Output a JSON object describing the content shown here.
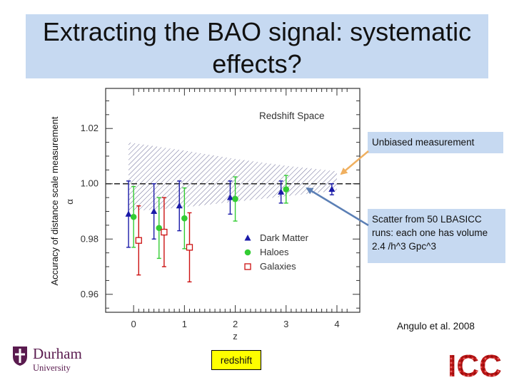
{
  "slide": {
    "title": "Extracting the BAO signal: systematic effects?",
    "side_label": "Accuracy of distance scale measurement",
    "callout_unbiased": "Unbiased measurement",
    "callout_scatter": "Scatter from 50 LBASICC runs: each one has volume 2.4 /h^3 Gpc^3",
    "citation": "Angulo et al. 2008",
    "redshift_box": "redshift",
    "logo_left": {
      "name": "Durham",
      "sub": "University"
    },
    "logo_right": "ICC"
  },
  "chart_data": {
    "type": "scatter",
    "title": "Redshift Space",
    "xlabel": "z",
    "ylabel": "α",
    "xlim": [
      -0.55,
      4.45
    ],
    "ylim": [
      0.9535,
      1.0345
    ],
    "x_ticks": [
      0,
      1,
      2,
      3,
      4
    ],
    "y_ticks": [
      0.96,
      0.98,
      1.0,
      1.02
    ],
    "y_tick_labels": [
      "0.96",
      "0.98",
      "1.00",
      "1.02"
    ],
    "reference_line": 1.0,
    "legend_position": "bottom-right",
    "band": {
      "label": "hatched uncertainty region",
      "x": [
        -0.1,
        1.0,
        2.0,
        3.0,
        4.0
      ],
      "upper": [
        1.015,
        1.012,
        1.009,
        1.0065,
        1.0045
      ],
      "lower": [
        0.99,
        0.9915,
        0.9935,
        0.9955,
        0.9975
      ]
    },
    "series": [
      {
        "name": "Dark Matter",
        "marker": "triangle",
        "color": "#1a1aa8",
        "x": [
          -0.1,
          0.4,
          0.9,
          1.9,
          2.9,
          3.9
        ],
        "y": [
          0.989,
          0.99,
          0.992,
          0.995,
          0.997,
          0.998
        ],
        "err": [
          0.012,
          0.01,
          0.009,
          0.006,
          0.004,
          0.002
        ]
      },
      {
        "name": "Haloes",
        "marker": "circle",
        "color": "#33cc33",
        "x": [
          0.0,
          0.5,
          1.0,
          2.0,
          3.0
        ],
        "y": [
          0.988,
          0.984,
          0.9875,
          0.9945,
          0.998
        ],
        "err": [
          0.011,
          0.011,
          0.011,
          0.008,
          0.005
        ]
      },
      {
        "name": "Galaxies",
        "marker": "open-square",
        "color": "#cc1111",
        "x": [
          0.1,
          0.6,
          1.1
        ],
        "y": [
          0.9795,
          0.9825,
          0.977
        ],
        "err": [
          0.0125,
          0.0125,
          0.0125
        ]
      }
    ]
  }
}
